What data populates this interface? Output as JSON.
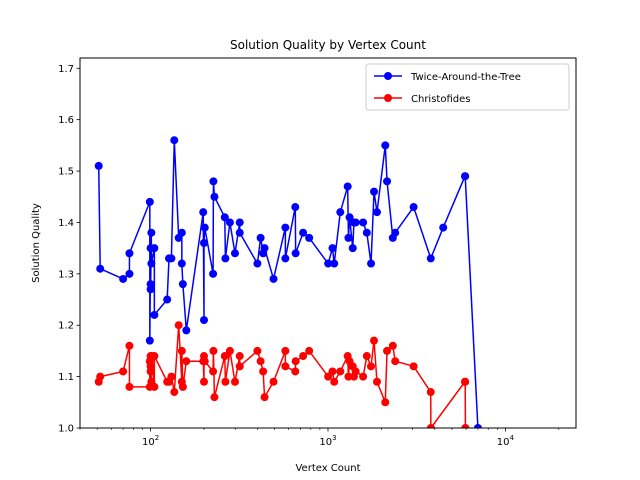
{
  "chart_data": {
    "type": "line",
    "title": "Solution Quality by Vertex Count",
    "xlabel": "Vertex Count",
    "ylabel": "Solution Quality",
    "xscale": "log",
    "xlim": [
      40,
      25000
    ],
    "ylim": [
      1.0,
      1.72
    ],
    "yticks": [
      1.0,
      1.1,
      1.2,
      1.3,
      1.4,
      1.5,
      1.6,
      1.7
    ],
    "ytick_labels": [
      "1.0",
      "1.1",
      "1.2",
      "1.3",
      "1.4",
      "1.5",
      "1.6",
      "1.7"
    ],
    "xticks": [
      100,
      1000,
      10000
    ],
    "xtick_bases": [
      "10",
      "10",
      "10"
    ],
    "xtick_exponents": [
      "2",
      "3",
      "4"
    ],
    "grid": false,
    "legend_position": "top-right",
    "series": [
      {
        "name": "Twice-Around-the-Tree",
        "color": "#0000ff",
        "x": [
          51,
          52,
          70,
          76,
          76,
          99,
          99,
          100,
          100,
          100,
          101,
          101,
          105,
          105,
          124,
          127,
          131,
          136,
          144,
          150,
          150,
          152,
          159,
          198,
          200,
          200,
          202,
          225,
          226,
          229,
          262,
          264,
          280,
          299,
          318,
          318,
          400,
          417,
          431,
          439,
          493,
          575,
          575,
          654,
          657,
          724,
          783,
          1002,
          1060,
          1084,
          1173,
          1291,
          1304,
          1323,
          1379,
          1400,
          1432,
          1577,
          1655,
          1748,
          1817,
          1889,
          2103,
          2152,
          2319,
          2392,
          3038,
          3795,
          4461,
          5915,
          5934,
          7000
        ],
        "y": [
          1.51,
          1.31,
          1.29,
          1.3,
          1.34,
          1.44,
          1.17,
          1.35,
          1.28,
          1.27,
          1.38,
          1.32,
          1.35,
          1.22,
          1.25,
          1.33,
          1.33,
          1.56,
          1.37,
          1.38,
          1.32,
          1.28,
          1.19,
          1.42,
          1.21,
          1.36,
          1.39,
          1.3,
          1.48,
          1.45,
          1.41,
          1.33,
          1.4,
          1.34,
          1.4,
          1.38,
          1.32,
          1.37,
          1.34,
          1.35,
          1.29,
          1.39,
          1.33,
          1.43,
          1.34,
          1.38,
          1.37,
          1.32,
          1.35,
          1.32,
          1.42,
          1.47,
          1.37,
          1.41,
          1.35,
          1.4,
          1.4,
          1.4,
          1.38,
          1.32,
          1.46,
          1.42,
          1.55,
          1.48,
          1.37,
          1.38,
          1.43,
          1.33,
          1.39,
          1.49,
          1.49,
          1.0
        ]
      },
      {
        "name": "Christofides",
        "color": "#ff0000",
        "x": [
          51,
          52,
          70,
          76,
          76,
          99,
          99,
          100,
          100,
          100,
          101,
          101,
          105,
          105,
          124,
          127,
          131,
          136,
          144,
          150,
          150,
          152,
          159,
          198,
          200,
          200,
          202,
          225,
          226,
          229,
          262,
          264,
          280,
          299,
          318,
          318,
          400,
          417,
          431,
          439,
          493,
          575,
          575,
          654,
          657,
          724,
          783,
          1002,
          1060,
          1084,
          1173,
          1291,
          1304,
          1323,
          1379,
          1400,
          1432,
          1577,
          1655,
          1748,
          1817,
          1889,
          2103,
          2152,
          2319,
          2392,
          3038,
          3795,
          3800,
          5915,
          5934,
          5950
        ],
        "y": [
          1.09,
          1.1,
          1.11,
          1.16,
          1.08,
          1.08,
          1.13,
          1.14,
          1.11,
          1.12,
          1.09,
          1.14,
          1.08,
          1.14,
          1.09,
          1.09,
          1.1,
          1.07,
          1.2,
          1.09,
          1.15,
          1.08,
          1.13,
          1.13,
          1.09,
          1.14,
          1.13,
          1.11,
          1.15,
          1.06,
          1.14,
          1.09,
          1.15,
          1.09,
          1.14,
          1.12,
          1.15,
          1.13,
          1.11,
          1.06,
          1.09,
          1.15,
          1.12,
          1.11,
          1.13,
          1.14,
          1.15,
          1.1,
          1.11,
          1.09,
          1.11,
          1.14,
          1.1,
          1.13,
          1.12,
          1.1,
          1.11,
          1.1,
          1.14,
          1.12,
          1.17,
          1.09,
          1.05,
          1.15,
          1.16,
          1.13,
          1.12,
          1.07,
          1.0,
          1.09,
          1.09,
          1.0
        ]
      }
    ]
  }
}
